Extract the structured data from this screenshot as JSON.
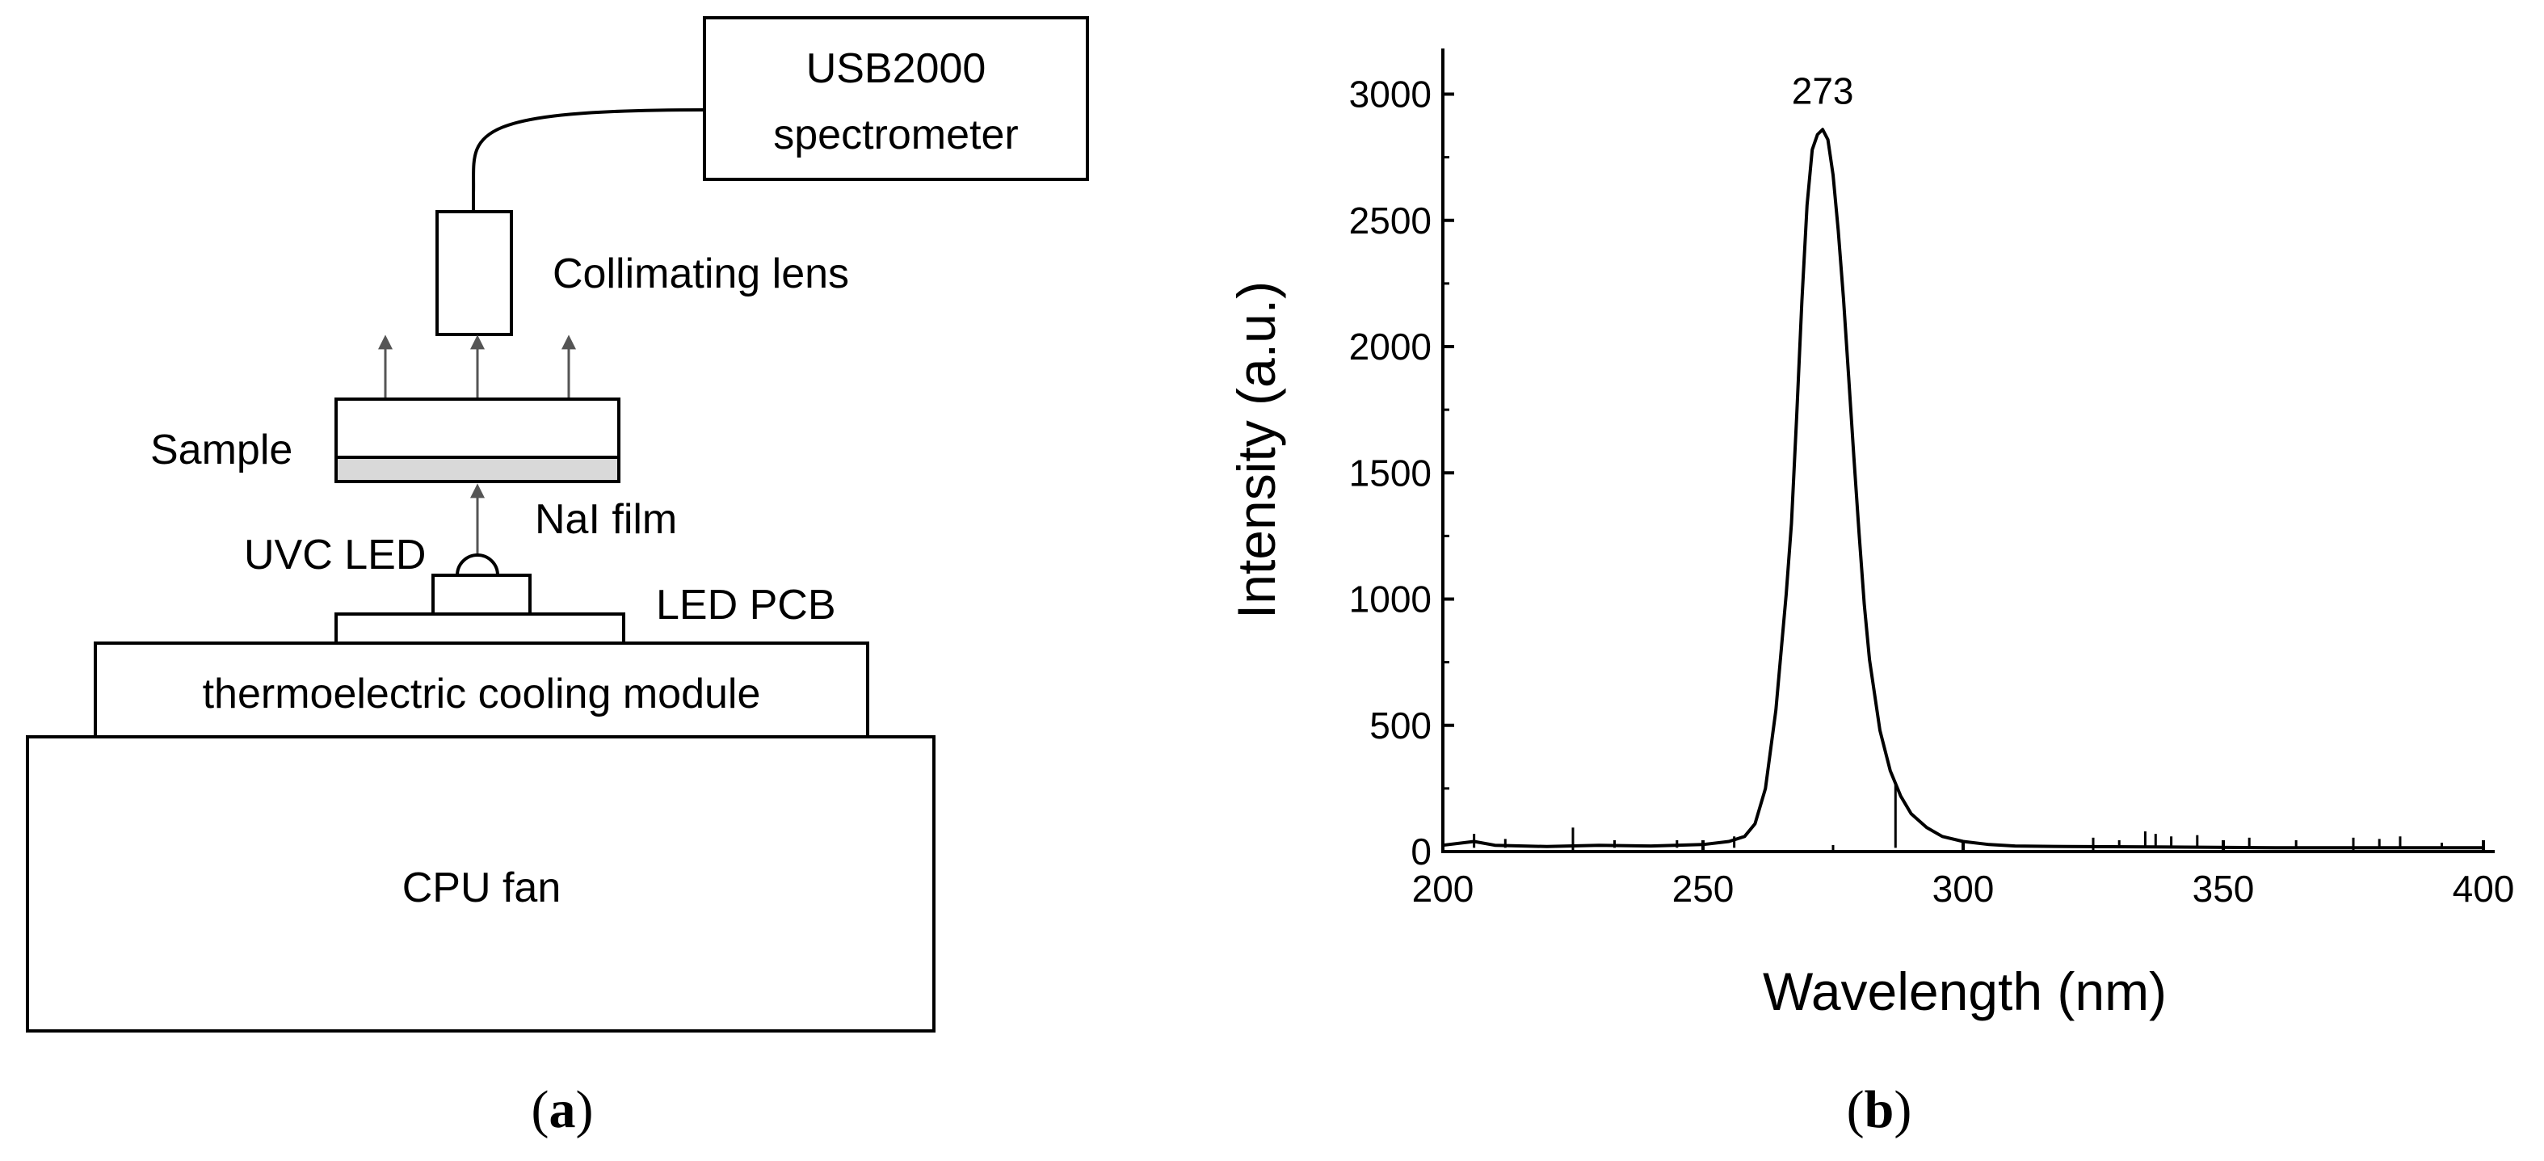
{
  "diagram": {
    "spectrometer": [
      "USB2000",
      "spectrometer"
    ],
    "lens": "Collimating lens",
    "sample": "Sample",
    "film": "NaI film",
    "led": "UVC LED",
    "pcb": "LED PCB",
    "cooler": "thermoelectric cooling module",
    "fan": "CPU fan",
    "panel_label": {
      "open": "(",
      "letter": "a",
      "close": ")"
    }
  },
  "chart_data": {
    "type": "line",
    "xlabel": "Wavelength (nm)",
    "ylabel": "Intensity (a.u.)",
    "xlim": [
      200,
      400
    ],
    "ylim": [
      0,
      3200
    ],
    "xticks": [
      "200",
      "250",
      "300",
      "350",
      "400"
    ],
    "yticks": [
      "0",
      "500",
      "1000",
      "1500",
      "2000",
      "2500",
      "3000"
    ],
    "grid": false,
    "annotation": {
      "text": "273",
      "x": 273,
      "y": 2860
    },
    "series": [
      {
        "x": [
          200,
          206,
          210,
          220,
          230,
          240,
          250,
          255,
          258,
          260,
          262,
          264,
          266,
          267,
          268,
          269,
          270,
          271,
          272,
          273,
          274,
          275,
          276,
          277,
          278,
          279,
          280,
          281,
          282,
          284,
          286,
          288,
          290,
          293,
          296,
          300,
          305,
          310,
          320,
          340,
          360,
          380,
          400
        ],
        "y": [
          25,
          40,
          25,
          20,
          25,
          22,
          28,
          40,
          60,
          110,
          250,
          560,
          1020,
          1300,
          1720,
          2180,
          2560,
          2780,
          2840,
          2860,
          2820,
          2680,
          2460,
          2190,
          1880,
          1560,
          1260,
          980,
          760,
          480,
          320,
          220,
          150,
          95,
          60,
          40,
          28,
          22,
          20,
          18,
          15,
          15,
          15
        ]
      }
    ],
    "noise_spikes": [
      {
        "x": 206,
        "y": 70
      },
      {
        "x": 212,
        "y": 50
      },
      {
        "x": 225,
        "y": 95
      },
      {
        "x": 233,
        "y": 45
      },
      {
        "x": 245,
        "y": 45
      },
      {
        "x": 256,
        "y": 60
      },
      {
        "x": 287,
        "y": 270
      },
      {
        "x": 325,
        "y": 55
      },
      {
        "x": 330,
        "y": 45
      },
      {
        "x": 335,
        "y": 80
      },
      {
        "x": 337,
        "y": 70
      },
      {
        "x": 340,
        "y": 60
      },
      {
        "x": 345,
        "y": 65
      },
      {
        "x": 350,
        "y": 45
      },
      {
        "x": 355,
        "y": 55
      },
      {
        "x": 364,
        "y": 45
      },
      {
        "x": 375,
        "y": 55
      },
      {
        "x": 380,
        "y": 50
      },
      {
        "x": 384,
        "y": 60
      },
      {
        "x": 392,
        "y": 35
      }
    ],
    "panel_label": {
      "open": "(",
      "letter": "b",
      "close": ")"
    }
  }
}
